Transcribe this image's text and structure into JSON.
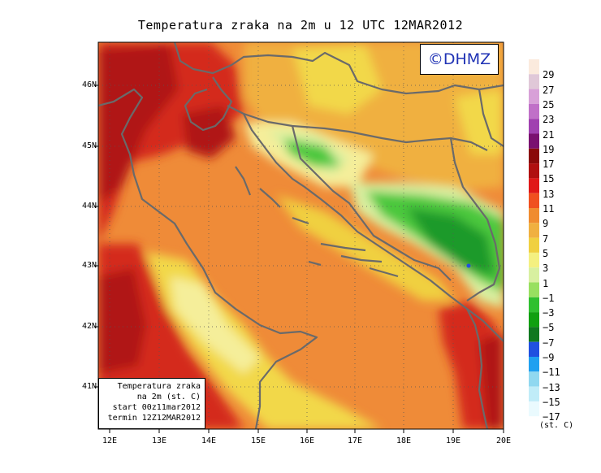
{
  "title": "Temperatura zraka na 2m u 12 UTC 12MAR2012",
  "logo_text": "©DHMZ",
  "info_box": {
    "line1": "Temperatura zraka",
    "line2": "na 2m (st. C)",
    "line3": "start 00z11mar2012",
    "line4": "termin 12Z12MAR2012"
  },
  "axes": {
    "lat_ticks": [
      "46N",
      "45N",
      "44N",
      "43N",
      "42N",
      "41N"
    ],
    "lon_ticks": [
      "12E",
      "13E",
      "14E",
      "15E",
      "16E",
      "17E",
      "18E",
      "19E",
      "20E"
    ]
  },
  "legend": {
    "unit": "(st. C)",
    "labels": [
      "29",
      "27",
      "25",
      "23",
      "21",
      "19",
      "17",
      "15",
      "13",
      "11",
      "9",
      "7",
      "5",
      "3",
      "1",
      "−1",
      "−3",
      "−5",
      "−7",
      "−9",
      "−11",
      "−13",
      "−15",
      "−17"
    ],
    "colors": [
      "#fbeadd",
      "#e0c8d8",
      "#d8a0d8",
      "#c070c8",
      "#a040b0",
      "#7a1070",
      "#8a0a0a",
      "#b01010",
      "#e01818",
      "#f05020",
      "#f08c30",
      "#f0b040",
      "#f0d040",
      "#f4f080",
      "#d8f0a0",
      "#98e060",
      "#30c030",
      "#10a010",
      "#107820",
      "#2050e0",
      "#20a0f0",
      "#90d8f0",
      "#c0ecf8",
      "#eafafe"
    ]
  },
  "colors": {
    "sea_orange": "#ef8b38",
    "coast_red": "#d42a1a",
    "dark_red": "#b01515",
    "yellow": "#f2d84a",
    "light_yellow": "#f5ee9a",
    "pale_green": "#d9efa0",
    "green": "#4cc83c",
    "dark_green": "#1a9a2a",
    "border_gray": "#6a6a6a"
  }
}
